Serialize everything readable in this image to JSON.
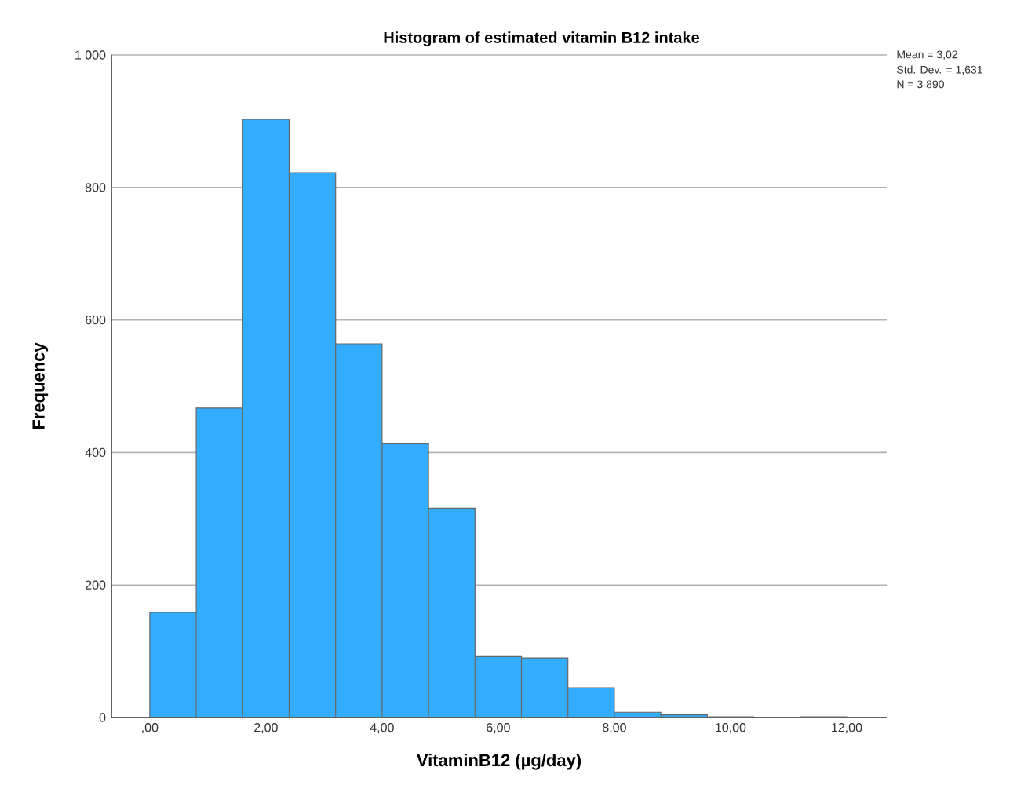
{
  "chart_data": {
    "type": "histogram",
    "title": "Histogram of estimated vitamin B12 intake",
    "xlabel": "VitaminB12 (µg/day)",
    "ylabel": "Frequency",
    "annotations": [
      "Mean = 3,02",
      "Std. Dev. = 1,631",
      "N = 3 890"
    ],
    "bins": [
      0,
      0.8,
      1.6,
      2.4,
      3.2,
      4.0,
      4.8,
      5.6,
      6.4,
      7.2,
      8.0,
      8.8,
      9.6,
      10.4,
      11.2,
      12.0
    ],
    "values": [
      159,
      467,
      903,
      822,
      564,
      414,
      316,
      92,
      90,
      45,
      8,
      4,
      1,
      0,
      1
    ],
    "color": "#33adff",
    "xlim": [
      -0.66,
      12.69
    ],
    "ylim": [
      0,
      1000
    ],
    "xticks": [
      {
        "value": 0,
        "label": ",00"
      },
      {
        "value": 2,
        "label": "2,00"
      },
      {
        "value": 4,
        "label": "4,00"
      },
      {
        "value": 6,
        "label": "6,00"
      },
      {
        "value": 8,
        "label": "8,00"
      },
      {
        "value": 10,
        "label": "10,00"
      },
      {
        "value": 12,
        "label": "12,00"
      }
    ],
    "yticks": [
      0,
      200,
      400,
      600,
      800,
      {
        "value": 1000,
        "label": "1 000"
      }
    ],
    "grid": "y"
  }
}
